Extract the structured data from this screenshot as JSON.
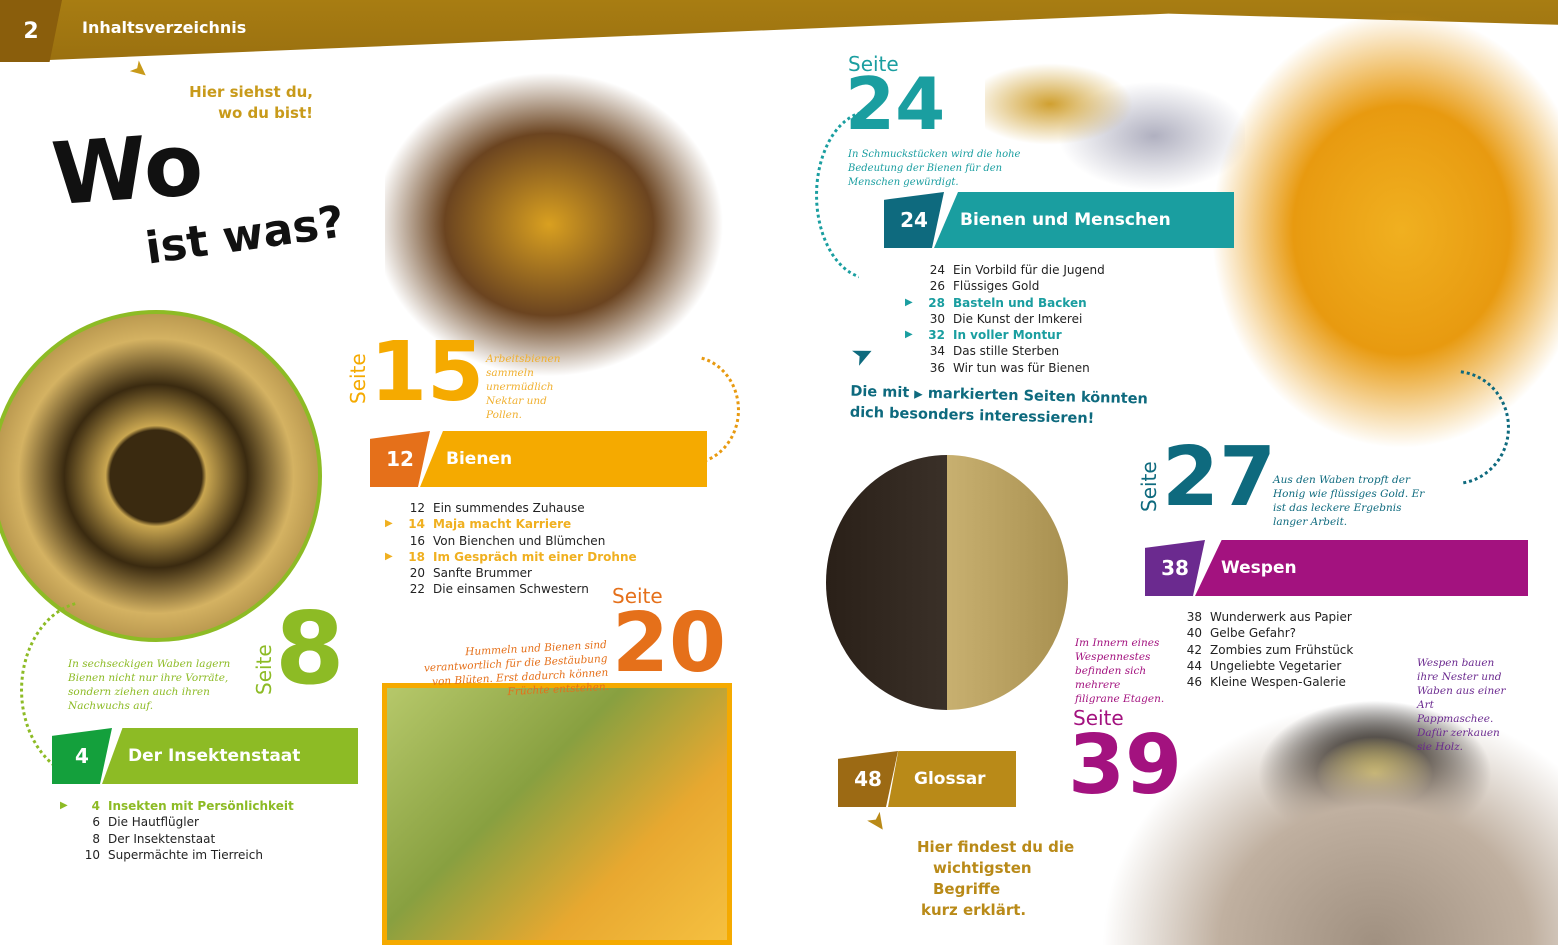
{
  "header": {
    "page_number": "2",
    "title": "Inhaltsverzeichnis"
  },
  "hint_top": [
    "Hier siehst du,",
    "wo du bist!"
  ],
  "headline": {
    "line1": "Wo",
    "line2": "ist was?"
  },
  "colors": {
    "header": "#a07a12",
    "green": "#8dbb25",
    "green_dark": "#14a03c",
    "orange": "#f5aa00",
    "orange_dark": "#e5701a",
    "teal": "#1a9ea0",
    "teal_dark": "#0e6a7e",
    "purple": "#a3127f",
    "purple_dark": "#6b2a8f",
    "glossar": "#b98a18",
    "glossar_dark": "#9c6a14"
  },
  "callouts": {
    "p8": {
      "seite": "Seite",
      "num": "8",
      "caption": "In sechseckigen Waben lagern Bienen nicht nur ihre Vorräte, sondern ziehen auch ihren Nachwuchs auf."
    },
    "p15": {
      "seite": "Seite",
      "num": "15",
      "caption": "Arbeitsbienen sammeln unermüdlich Nektar und Pollen."
    },
    "p20": {
      "seite": "Seite",
      "num": "20",
      "caption": "Hummeln und Bienen sind verantwortlich für die Bestäubung von Blüten. Erst dadurch können Früchte entstehen."
    },
    "p24": {
      "seite": "Seite",
      "num": "24",
      "caption": "In Schmuckstücken wird die hohe Bedeutung der Bienen für den Menschen gewürdigt."
    },
    "p27": {
      "seite": "Seite",
      "num": "27",
      "caption": "Aus den Waben tropft der Honig wie flüssiges Gold. Er ist das leckere Ergebnis langer Arbeit."
    },
    "p39": {
      "seite": "Seite",
      "num": "39",
      "caption": "Im Innern eines Wespennestes befinden sich mehrere filigrane Etagen."
    },
    "wasp": {
      "caption": "Wespen bauen ihre Nester und Waben aus einer Art Pappmaschee. Dafür zerkauen sie Holz."
    }
  },
  "sections": [
    {
      "num": "4",
      "title": "Der Insektenstaat",
      "items": [
        {
          "p": "4",
          "t": "Insekten mit Persönlichkeit",
          "marked": true
        },
        {
          "p": "6",
          "t": "Die Hautflügler"
        },
        {
          "p": "8",
          "t": "Der Insektenstaat"
        },
        {
          "p": "10",
          "t": "Supermächte im Tierreich"
        }
      ]
    },
    {
      "num": "12",
      "title": "Bienen",
      "items": [
        {
          "p": "12",
          "t": "Ein summendes Zuhause"
        },
        {
          "p": "14",
          "t": "Maja macht Karriere",
          "marked": true
        },
        {
          "p": "16",
          "t": "Von Bienchen und Blümchen"
        },
        {
          "p": "18",
          "t": "Im Gespräch mit einer Drohne",
          "marked": true
        },
        {
          "p": "20",
          "t": "Sanfte Brummer"
        },
        {
          "p": "22",
          "t": "Die einsamen Schwestern"
        }
      ]
    },
    {
      "num": "24",
      "title": "Bienen und Menschen",
      "items": [
        {
          "p": "24",
          "t": "Ein Vorbild für die Jugend"
        },
        {
          "p": "26",
          "t": "Flüssiges Gold"
        },
        {
          "p": "28",
          "t": "Basteln und Backen",
          "marked": true
        },
        {
          "p": "30",
          "t": "Die Kunst der Imkerei"
        },
        {
          "p": "32",
          "t": "In voller Montur",
          "marked": true
        },
        {
          "p": "34",
          "t": "Das stille Sterben"
        },
        {
          "p": "36",
          "t": "Wir tun was für Bienen"
        }
      ]
    },
    {
      "num": "38",
      "title": "Wespen",
      "items": [
        {
          "p": "38",
          "t": "Wunderwerk aus Papier"
        },
        {
          "p": "40",
          "t": "Gelbe Gefahr?"
        },
        {
          "p": "42",
          "t": "Zombies zum Frühstück"
        },
        {
          "p": "44",
          "t": "Ungeliebte Vegetarier"
        },
        {
          "p": "46",
          "t": "Kleine Wespen-Galerie"
        }
      ]
    },
    {
      "num": "48",
      "title": "Glossar",
      "items": []
    }
  ],
  "marked_note": {
    "before": "Die mit",
    "after": "markierten Seiten könnten dich besonders interessieren!"
  },
  "glossar_hint": [
    "Hier findest du die",
    "wichtigsten Begriffe",
    "kurz erklärt."
  ]
}
